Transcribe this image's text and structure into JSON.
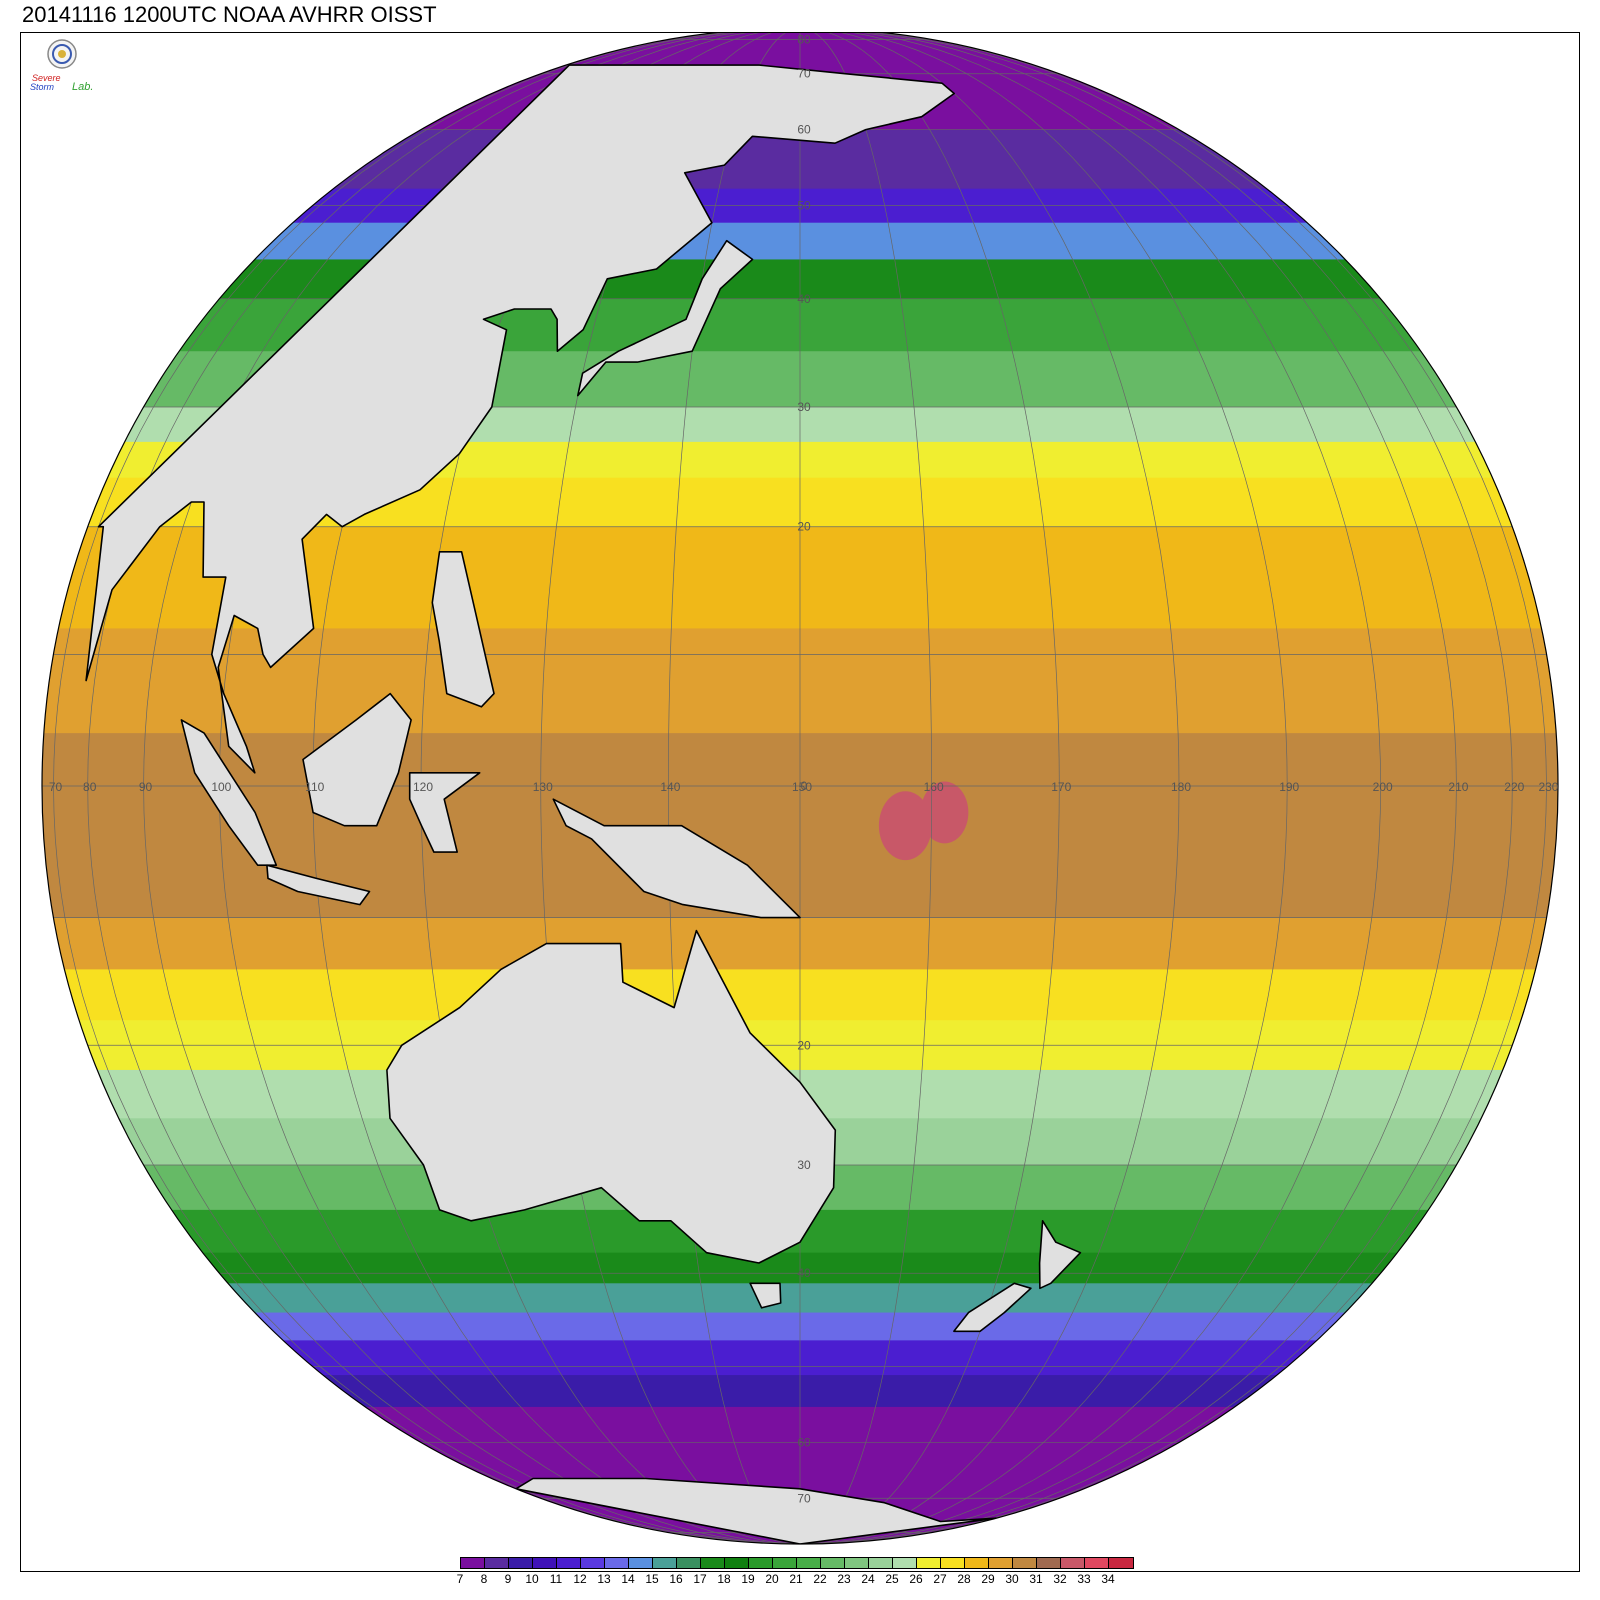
{
  "title": "20141116 1200UTC NOAA AVHRR OISST",
  "logo": {
    "line1": "Severe",
    "line2": "Storm",
    "line3": "Lab."
  },
  "map": {
    "projection": "orthographic",
    "center_lon": 150,
    "center_lat": 0,
    "variable": "sea surface temperature",
    "land_color": "#e0e0e0",
    "coast_color": "#000000",
    "grid_color": "#666666",
    "lat_labels": [
      "80",
      "70",
      "60",
      "50",
      "40",
      "30",
      "20",
      "0",
      "20",
      "30",
      "40",
      "60",
      "70"
    ],
    "lon_labels": [
      "70",
      "80",
      "90",
      "100",
      "110",
      "120",
      "130",
      "140",
      "150",
      "160",
      "170",
      "180",
      "190",
      "200",
      "210",
      "220",
      "230"
    ],
    "bands": [
      {
        "lat_from": 90,
        "lat_to": 60,
        "sst": 7
      },
      {
        "lat_from": 60,
        "lat_to": 52,
        "sst": 8
      },
      {
        "lat_from": 52,
        "lat_to": 48,
        "sst": 11
      },
      {
        "lat_from": 48,
        "lat_to": 44,
        "sst": 14
      },
      {
        "lat_from": 44,
        "lat_to": 40,
        "sst": 17
      },
      {
        "lat_from": 40,
        "lat_to": 35,
        "sst": 20
      },
      {
        "lat_from": 35,
        "lat_to": 30,
        "sst": 22
      },
      {
        "lat_from": 30,
        "lat_to": 27,
        "sst": 25
      },
      {
        "lat_from": 27,
        "lat_to": 24,
        "sst": 26
      },
      {
        "lat_from": 24,
        "lat_to": 20,
        "sst": 27
      },
      {
        "lat_from": 20,
        "lat_to": 12,
        "sst": 28
      },
      {
        "lat_from": 12,
        "lat_to": 4,
        "sst": 29
      },
      {
        "lat_from": 4,
        "lat_to": -10,
        "sst": 30
      },
      {
        "lat_from": -10,
        "lat_to": -14,
        "sst": 29
      },
      {
        "lat_from": -14,
        "lat_to": -18,
        "sst": 27
      },
      {
        "lat_from": -18,
        "lat_to": -22,
        "sst": 26
      },
      {
        "lat_from": -22,
        "lat_to": -26,
        "sst": 25
      },
      {
        "lat_from": -26,
        "lat_to": -30,
        "sst": 24
      },
      {
        "lat_from": -30,
        "lat_to": -34,
        "sst": 22
      },
      {
        "lat_from": -34,
        "lat_to": -38,
        "sst": 19
      },
      {
        "lat_from": -38,
        "lat_to": -41,
        "sst": 17
      },
      {
        "lat_from": -41,
        "lat_to": -44,
        "sst": 15
      },
      {
        "lat_from": -44,
        "lat_to": -47,
        "sst": 13
      },
      {
        "lat_from": -47,
        "lat_to": -51,
        "sst": 11
      },
      {
        "lat_from": -51,
        "lat_to": -55,
        "sst": 9
      },
      {
        "lat_from": -55,
        "lat_to": -90,
        "sst": 7
      }
    ],
    "land": [
      {
        "name": "asia",
        "pts": [
          [
            100,
            72
          ],
          [
            140,
            72
          ],
          [
            160,
            70
          ],
          [
            180,
            68
          ],
          [
            180,
            66
          ],
          [
            170,
            62
          ],
          [
            160,
            60
          ],
          [
            155,
            58
          ],
          [
            143,
            59
          ],
          [
            140,
            55
          ],
          [
            135,
            54
          ],
          [
            140,
            48
          ],
          [
            135,
            43
          ],
          [
            130,
            42
          ],
          [
            129,
            37
          ],
          [
            127,
            35
          ],
          [
            126,
            38
          ],
          [
            125,
            39
          ],
          [
            121,
            39
          ],
          [
            118,
            38
          ],
          [
            121,
            37
          ],
          [
            122,
            30
          ],
          [
            120,
            26
          ],
          [
            117,
            23
          ],
          [
            112,
            21
          ],
          [
            110,
            20
          ],
          [
            108,
            21
          ],
          [
            106,
            19
          ],
          [
            109,
            12
          ],
          [
            105,
            9
          ],
          [
            104,
            10
          ],
          [
            103,
            12
          ],
          [
            100,
            13
          ],
          [
            99,
            9
          ],
          [
            101,
            3
          ],
          [
            104,
            1
          ],
          [
            103,
            3
          ],
          [
            100,
            7
          ],
          [
            98,
            10
          ],
          [
            98,
            16
          ],
          [
            95,
            16
          ],
          [
            92,
            22
          ],
          [
            90,
            22
          ],
          [
            86,
            20
          ],
          [
            80,
            15
          ],
          [
            78,
            8
          ],
          [
            72,
            20
          ],
          [
            70,
            20
          ],
          [
            70,
            72
          ]
        ]
      },
      {
        "name": "japan",
        "pts": [
          [
            130,
            31
          ],
          [
            132,
            34
          ],
          [
            135,
            34
          ],
          [
            140,
            35
          ],
          [
            141,
            38
          ],
          [
            142,
            41
          ],
          [
            145,
            44
          ],
          [
            142,
            46
          ],
          [
            140,
            42
          ],
          [
            139,
            38
          ],
          [
            137,
            37
          ],
          [
            133,
            35
          ],
          [
            130,
            33
          ]
        ]
      },
      {
        "name": "borneo",
        "pts": [
          [
            109,
            2
          ],
          [
            114,
            5
          ],
          [
            117,
            7
          ],
          [
            119,
            5
          ],
          [
            118,
            1
          ],
          [
            116,
            -3
          ],
          [
            113,
            -3
          ],
          [
            110,
            -2
          ]
        ]
      },
      {
        "name": "sumatra",
        "pts": [
          [
            95,
            5
          ],
          [
            98,
            4
          ],
          [
            104,
            -2
          ],
          [
            106,
            -6
          ],
          [
            104,
            -6
          ],
          [
            101,
            -3
          ],
          [
            97,
            1
          ]
        ]
      },
      {
        "name": "java",
        "pts": [
          [
            105,
            -6
          ],
          [
            110,
            -7
          ],
          [
            115,
            -8
          ],
          [
            114,
            -9
          ],
          [
            108,
            -8
          ],
          [
            105,
            -7
          ]
        ]
      },
      {
        "name": "sulawesi",
        "pts": [
          [
            119,
            1
          ],
          [
            125,
            1
          ],
          [
            122,
            -1
          ],
          [
            123,
            -5
          ],
          [
            121,
            -5
          ],
          [
            120,
            -3
          ],
          [
            119,
            -1
          ]
        ]
      },
      {
        "name": "philippines",
        "pts": [
          [
            120,
            18
          ],
          [
            122,
            18
          ],
          [
            124,
            13
          ],
          [
            126,
            7
          ],
          [
            125,
            6
          ],
          [
            122,
            7
          ],
          [
            121,
            11
          ],
          [
            120,
            14
          ]
        ]
      },
      {
        "name": "new-guinea",
        "pts": [
          [
            131,
            -1
          ],
          [
            135,
            -3
          ],
          [
            141,
            -3
          ],
          [
            146,
            -6
          ],
          [
            150,
            -10
          ],
          [
            147,
            -10
          ],
          [
            141,
            -9
          ],
          [
            138,
            -8
          ],
          [
            134,
            -4
          ],
          [
            132,
            -3
          ]
        ]
      },
      {
        "name": "australia",
        "pts": [
          [
            114,
            -22
          ],
          [
            116,
            -20
          ],
          [
            122,
            -17
          ],
          [
            126,
            -14
          ],
          [
            130,
            -12
          ],
          [
            136,
            -12
          ],
          [
            136,
            -15
          ],
          [
            140,
            -17
          ],
          [
            142,
            -11
          ],
          [
            144,
            -15
          ],
          [
            146,
            -19
          ],
          [
            150,
            -23
          ],
          [
            153,
            -27
          ],
          [
            153,
            -32
          ],
          [
            150,
            -37
          ],
          [
            146,
            -39
          ],
          [
            141,
            -38
          ],
          [
            138,
            -35
          ],
          [
            135,
            -35
          ],
          [
            132,
            -32
          ],
          [
            124,
            -34
          ],
          [
            118,
            -35
          ],
          [
            115,
            -34
          ],
          [
            115,
            -30
          ],
          [
            113,
            -26
          ]
        ]
      },
      {
        "name": "tasmania",
        "pts": [
          [
            145,
            -41
          ],
          [
            148,
            -41
          ],
          [
            148,
            -43
          ],
          [
            146,
            -43.5
          ]
        ]
      },
      {
        "name": "new-zealand-north",
        "pts": [
          [
            173,
            -35
          ],
          [
            175,
            -37
          ],
          [
            178,
            -38
          ],
          [
            176,
            -41
          ],
          [
            175,
            -41.5
          ],
          [
            174,
            -39
          ]
        ]
      },
      {
        "name": "new-zealand-south",
        "pts": [
          [
            172,
            -41
          ],
          [
            174,
            -41.5
          ],
          [
            172,
            -44
          ],
          [
            170,
            -46
          ],
          [
            167,
            -46
          ],
          [
            168,
            -44
          ]
        ]
      },
      {
        "name": "antarctica",
        "pts": [
          [
            60,
            -68
          ],
          [
            90,
            -66
          ],
          [
            120,
            -66
          ],
          [
            150,
            -68
          ],
          [
            170,
            -71
          ],
          [
            200,
            -76
          ],
          [
            240,
            -75
          ],
          [
            240,
            -90
          ],
          [
            60,
            -90
          ]
        ]
      }
    ],
    "hotspots": [
      {
        "lon": 158,
        "lat": -3,
        "r": 2,
        "sst": 32
      },
      {
        "lon": 161,
        "lat": -2,
        "r": 1.8,
        "sst": 32
      }
    ]
  },
  "colorbar": {
    "labels": [
      "7",
      "8",
      "9",
      "10",
      "11",
      "12",
      "13",
      "14",
      "15",
      "16",
      "17",
      "18",
      "19",
      "20",
      "21",
      "22",
      "23",
      "24",
      "25",
      "26",
      "27",
      "28",
      "29",
      "30",
      "31",
      "32",
      "33",
      "34"
    ],
    "colors": [
      "#7a0f9f",
      "#5a2ca0",
      "#3a1ca8",
      "#3f12b8",
      "#4b1ed0",
      "#5a3ae0",
      "#6a6ae8",
      "#5a90e0",
      "#4aa098",
      "#3a9060",
      "#1a8a1a",
      "#108010",
      "#2a9a2a",
      "#3aa43a",
      "#48ae48",
      "#66ba66",
      "#80c680",
      "#9ad29a",
      "#b0deae",
      "#f0ee30",
      "#f8e020",
      "#f0b818",
      "#e0a030",
      "#c08840",
      "#a06a50",
      "#c85868",
      "#e04860",
      "#c82840"
    ]
  }
}
